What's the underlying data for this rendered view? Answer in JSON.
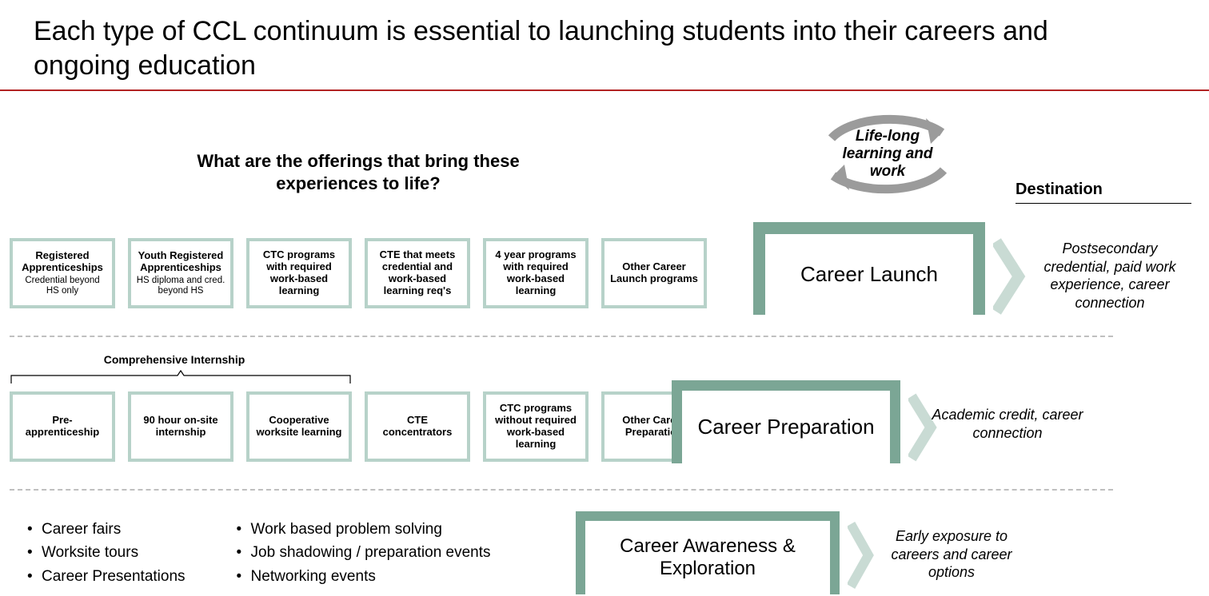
{
  "title": "Each type of CCL continuum is essential to launching students into their careers and ongoing education",
  "colors": {
    "rule": "#b22222",
    "box_border": "#b7d2c9",
    "stage_border": "#7ba695",
    "dashed": "#bfbfbf",
    "arrow_gray": "#9b9b9b",
    "chevron": "#c9dbd4",
    "text": "#000000",
    "bg": "#ffffff"
  },
  "question": "What are the offerings that bring these experiences to life?",
  "cycle_label": "Life-long learning and work",
  "destination_label": "Destination",
  "rows": {
    "launch": {
      "offerings": [
        {
          "title": "Registered Apprenticeships",
          "sub": "Credential beyond HS only"
        },
        {
          "title": "Youth Registered Apprenticeships",
          "sub": "HS diploma and cred. beyond HS"
        },
        {
          "title": "CTC programs with required work-based learning",
          "sub": ""
        },
        {
          "title": "CTE that meets credential and work-based learning req's",
          "sub": ""
        },
        {
          "title": "4 year programs with required work-based learning",
          "sub": ""
        },
        {
          "title": "Other Career Launch programs",
          "sub": ""
        }
      ],
      "stage": "Career Launch",
      "destination": "Postsecondary credential, paid work experience, career connection"
    },
    "prep": {
      "bracket_label": "Comprehensive Internship",
      "offerings": [
        {
          "title": "Pre-apprenticeship",
          "sub": ""
        },
        {
          "title": "90 hour on-site internship",
          "sub": ""
        },
        {
          "title": "Cooperative worksite learning",
          "sub": ""
        },
        {
          "title": "CTE concentrators",
          "sub": ""
        },
        {
          "title": "CTC programs without required work-based learning",
          "sub": ""
        },
        {
          "title": "Other Career Preparation",
          "sub": ""
        }
      ],
      "stage": "Career Preparation",
      "destination": "Academic credit, career connection"
    },
    "aware": {
      "bullets_left": [
        "Career fairs",
        "Worksite tours",
        "Career Presentations"
      ],
      "bullets_right": [
        "Work based problem solving",
        "Job shadowing / preparation events",
        "Networking events"
      ],
      "stage": "Career Awareness & Exploration",
      "destination": "Early exposure to careers and career options"
    }
  },
  "layout": {
    "slide_w": 1512,
    "slide_h": 746,
    "offer_w": 132,
    "offer_h": 88,
    "offer_border_w": 4,
    "stage_border_w": [
      15,
      13,
      12
    ],
    "title_fontsize": 34,
    "question_fontsize": 22,
    "stage_fontsize": 26,
    "bullet_fontsize": 19,
    "dest_fontsize": 18
  }
}
